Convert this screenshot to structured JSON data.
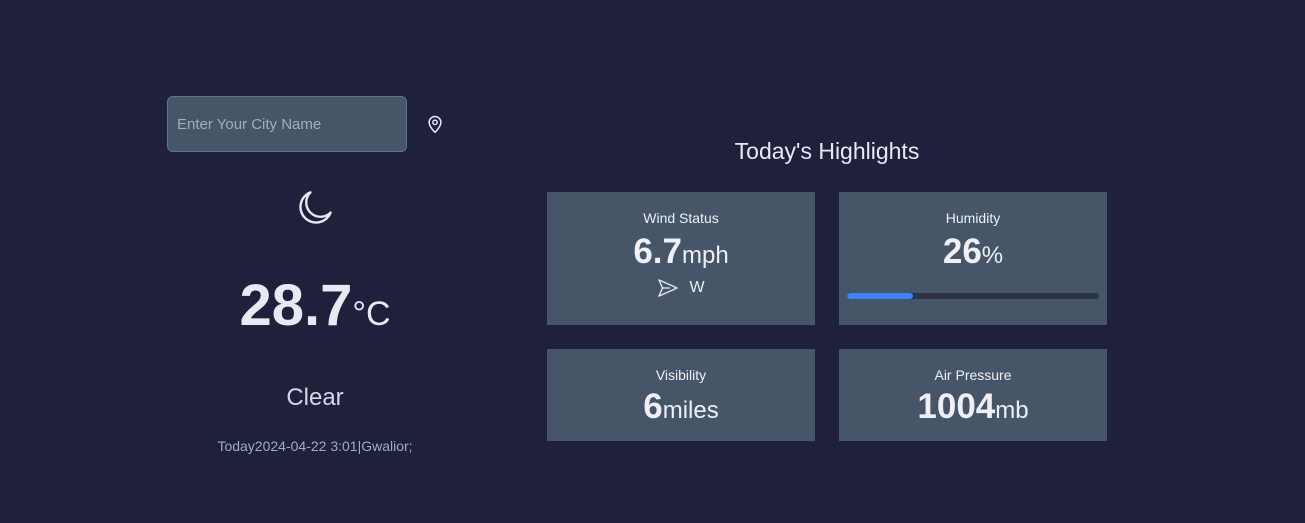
{
  "search": {
    "placeholder": "Enter Your City Name",
    "value": ""
  },
  "icons": {
    "location": "map-pin-icon",
    "weather": "moon-icon",
    "wind_direction": "navigation-arrow-icon"
  },
  "current": {
    "temperature": "28.7",
    "temperature_unit": "°C",
    "condition": "Clear",
    "date_line": "Today2024-04-22 3:01|Gwalior;"
  },
  "highlights": {
    "title": "Today's Highlights",
    "wind": {
      "title": "Wind Status",
      "value": "6.7",
      "unit": "mph",
      "direction": "W"
    },
    "humidity": {
      "title": "Humidity",
      "value": "26",
      "unit": "%",
      "percent": 26
    },
    "visibility": {
      "title": "Visibility",
      "value": "6",
      "unit": "miles"
    },
    "pressure": {
      "title": "Air Pressure",
      "value": "1004",
      "unit": "mb"
    }
  },
  "colors": {
    "background": "#1e203c",
    "card": "#475569",
    "accent": "#3b82f6"
  }
}
